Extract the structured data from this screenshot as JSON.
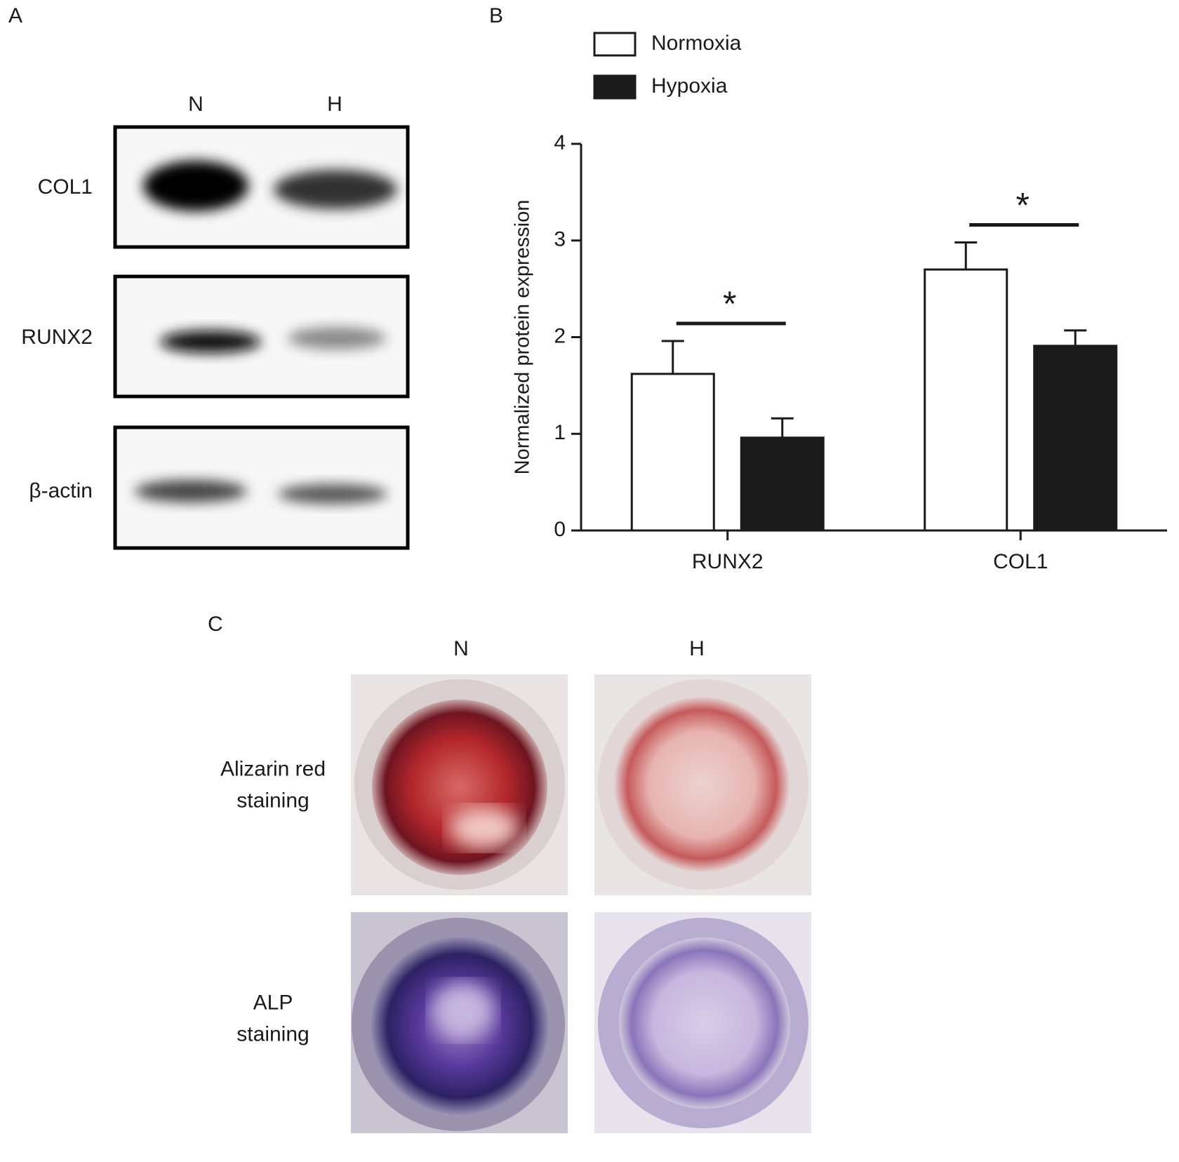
{
  "panel_a": {
    "label": "A",
    "lanes": [
      "N",
      "H"
    ],
    "rows": [
      "COL1",
      "RUNX2",
      "β-actin"
    ]
  },
  "chart_data": {
    "type": "bar",
    "panel_label": "B",
    "y_label": "Normalized protein expression",
    "categories": [
      "RUNX2",
      "COL1"
    ],
    "series": [
      {
        "name": "Normoxia",
        "color": "#ffffff",
        "values": [
          1.62,
          2.7
        ],
        "errors": [
          0.34,
          0.28
        ]
      },
      {
        "name": "Hypoxia",
        "color": "#1a1a1a",
        "values": [
          0.96,
          1.91
        ],
        "errors": [
          0.2,
          0.16
        ]
      }
    ],
    "significance": [
      "*",
      "*"
    ],
    "ylim": [
      0,
      4
    ],
    "yticks": [
      0,
      1,
      2,
      3,
      4
    ]
  },
  "panel_c": {
    "label": "C",
    "columns": [
      "N",
      "H"
    ],
    "rows": [
      [
        "Alizarin red",
        "staining"
      ],
      [
        "ALP",
        "staining"
      ]
    ]
  }
}
